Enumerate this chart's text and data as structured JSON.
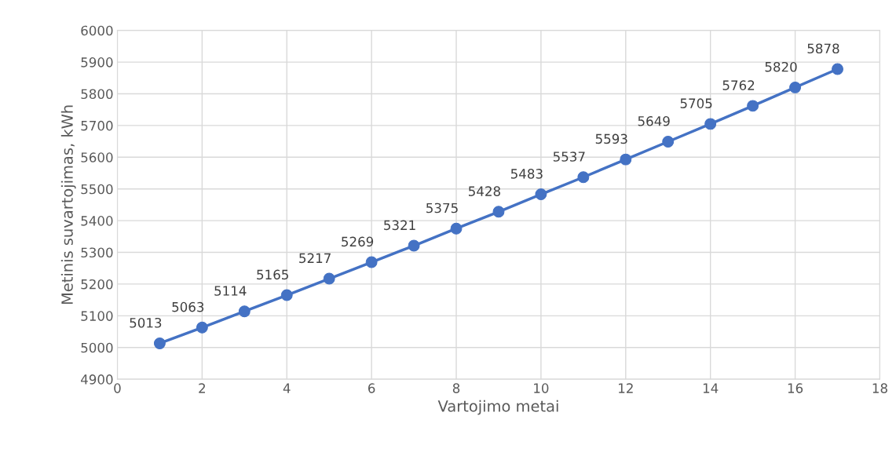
{
  "chart_data": {
    "type": "line",
    "xlabel": "Vartojimo metai",
    "ylabel": "Metinis suvartojimas, kWh",
    "x": [
      1,
      2,
      3,
      4,
      5,
      6,
      7,
      8,
      9,
      10,
      11,
      12,
      13,
      14,
      15,
      16,
      17
    ],
    "series": [
      {
        "color": "#4472c4",
        "values": [
          5013,
          5063,
          5114,
          5165,
          5217,
          5269,
          5321,
          5375,
          5428,
          5483,
          5537,
          5593,
          5649,
          5705,
          5762,
          5820,
          5878
        ]
      }
    ],
    "xlim": [
      0,
      18
    ],
    "xticks": [
      0,
      2,
      4,
      6,
      8,
      10,
      12,
      14,
      16,
      18
    ],
    "ylim": [
      4900,
      6000
    ],
    "yticks": [
      4900,
      5000,
      5100,
      5200,
      5300,
      5400,
      5500,
      5600,
      5700,
      5800,
      5900,
      6000
    ],
    "grid": true,
    "marker": "circle",
    "line_style": "solid",
    "data_labels": true
  }
}
